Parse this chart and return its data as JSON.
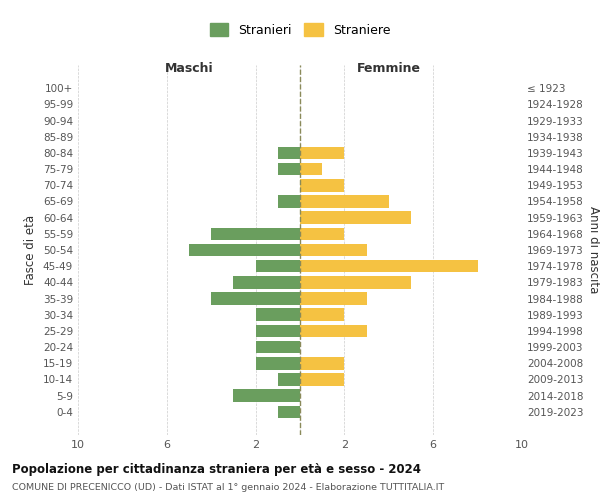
{
  "age_groups": [
    "0-4",
    "5-9",
    "10-14",
    "15-19",
    "20-24",
    "25-29",
    "30-34",
    "35-39",
    "40-44",
    "45-49",
    "50-54",
    "55-59",
    "60-64",
    "65-69",
    "70-74",
    "75-79",
    "80-84",
    "85-89",
    "90-94",
    "95-99",
    "100+"
  ],
  "birth_years": [
    "2019-2023",
    "2014-2018",
    "2009-2013",
    "2004-2008",
    "1999-2003",
    "1994-1998",
    "1989-1993",
    "1984-1988",
    "1979-1983",
    "1974-1978",
    "1969-1973",
    "1964-1968",
    "1959-1963",
    "1954-1958",
    "1949-1953",
    "1944-1948",
    "1939-1943",
    "1934-1938",
    "1929-1933",
    "1924-1928",
    "≤ 1923"
  ],
  "males": [
    1,
    3,
    1,
    2,
    2,
    2,
    2,
    4,
    3,
    2,
    5,
    4,
    0,
    1,
    0,
    1,
    1,
    0,
    0,
    0,
    0
  ],
  "females": [
    0,
    0,
    2,
    2,
    0,
    3,
    2,
    3,
    5,
    8,
    3,
    2,
    5,
    4,
    2,
    1,
    2,
    0,
    0,
    0,
    0
  ],
  "male_color": "#6a9e5e",
  "female_color": "#f5c242",
  "center_line_color": "#8a8a5a",
  "grid_color": "#cccccc",
  "background_color": "#ffffff",
  "title": "Popolazione per cittadinanza straniera per età e sesso - 2024",
  "subtitle": "COMUNE DI PRECENICCO (UD) - Dati ISTAT al 1° gennaio 2024 - Elaborazione TUTTITALIA.IT",
  "xlabel_left": "Maschi",
  "xlabel_right": "Femmine",
  "ylabel_left": "Fasce di età",
  "ylabel_right": "Anni di nascita",
  "legend_male": "Stranieri",
  "legend_female": "Straniere",
  "xlim": 10
}
